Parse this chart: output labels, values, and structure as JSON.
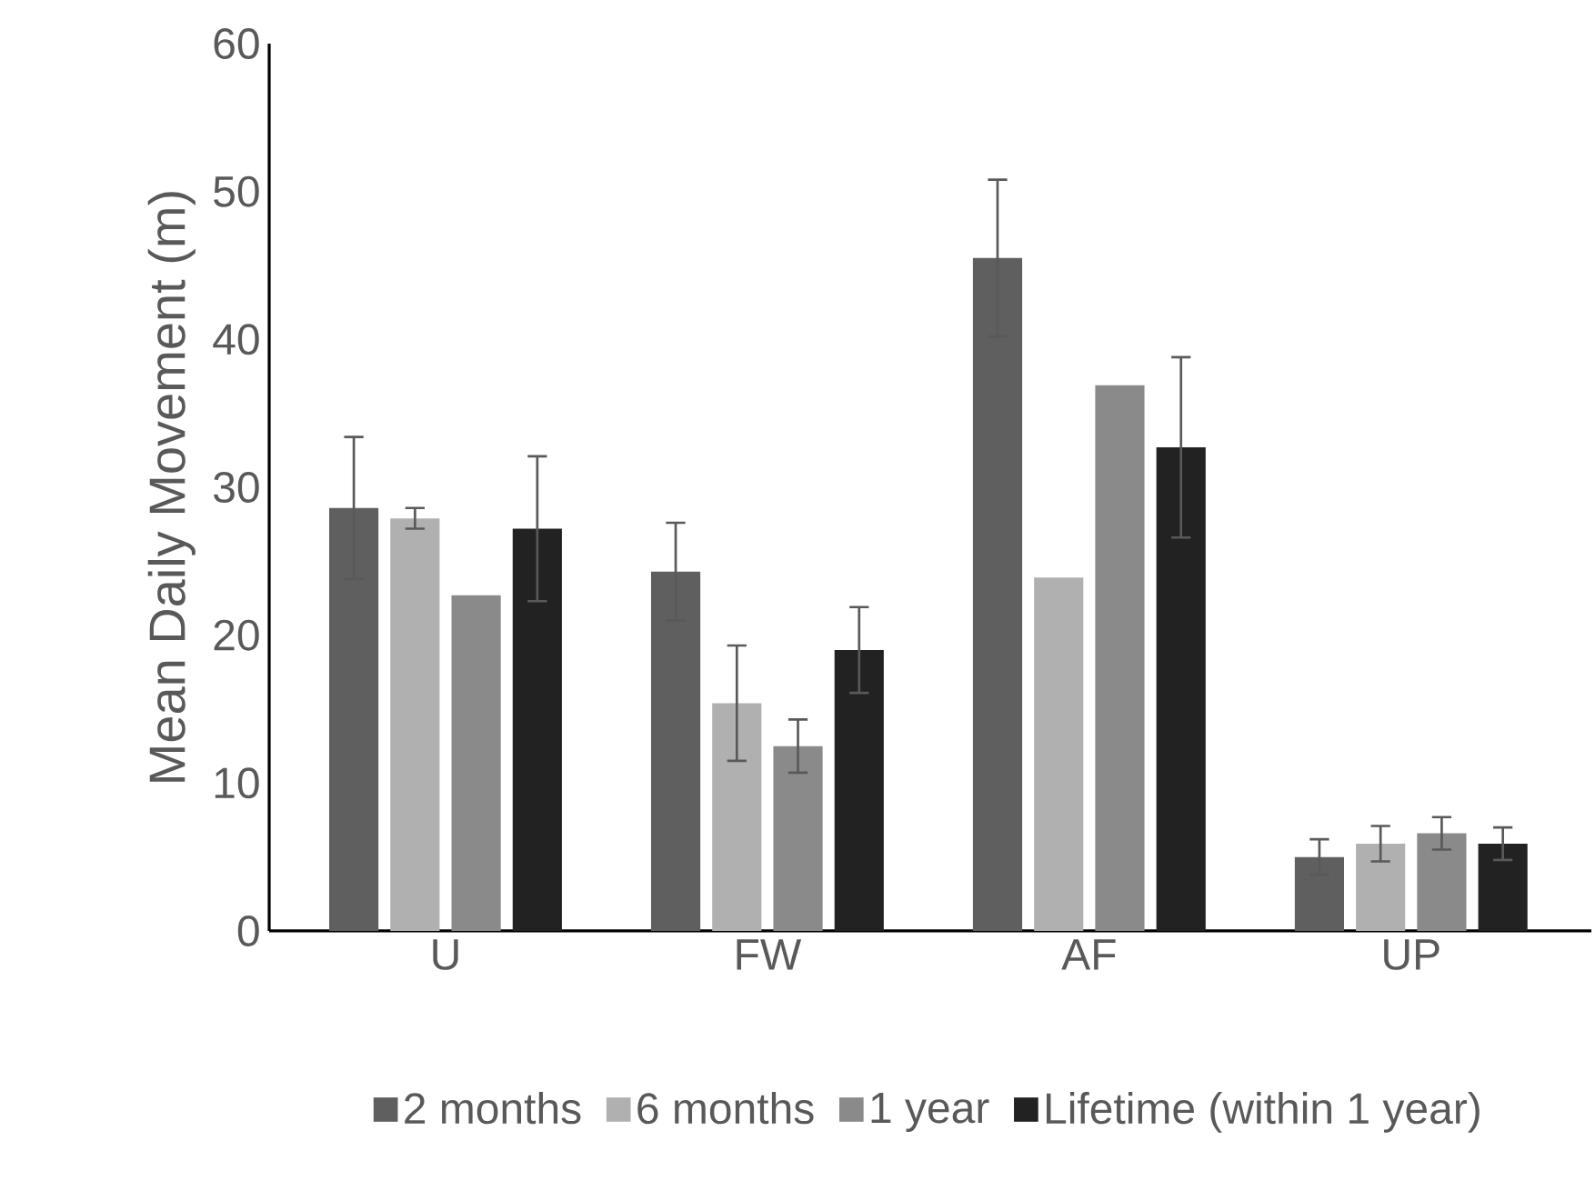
{
  "chart_data": {
    "type": "bar",
    "ylabel": "Mean Daily Movement (m)",
    "categories": [
      "U",
      "FW",
      "AF",
      "UP"
    ],
    "series": [
      {
        "name": "2 months",
        "color": "#5f5f5f",
        "values": [
          28.6,
          24.3,
          45.5,
          5.0
        ],
        "errors": [
          4.8,
          3.3,
          5.3,
          1.2
        ]
      },
      {
        "name": "6 months",
        "color": "#b0b0b0",
        "values": [
          27.9,
          15.4,
          23.9,
          5.9
        ],
        "errors": [
          0.7,
          3.9,
          null,
          1.2
        ]
      },
      {
        "name": "1 year",
        "color": "#8a8a8a",
        "values": [
          22.7,
          12.5,
          36.9,
          6.6
        ],
        "errors": [
          null,
          1.8,
          null,
          1.1
        ]
      },
      {
        "name": "Lifetime (within 1 year)",
        "color": "#222222",
        "values": [
          27.2,
          19.0,
          32.7,
          5.9
        ],
        "errors": [
          4.9,
          2.9,
          6.1,
          1.1
        ]
      }
    ],
    "ylim": [
      0,
      60
    ],
    "yticks": [
      0,
      10,
      20,
      30,
      40,
      50,
      60
    ],
    "grid": false,
    "legend": "bottom"
  }
}
